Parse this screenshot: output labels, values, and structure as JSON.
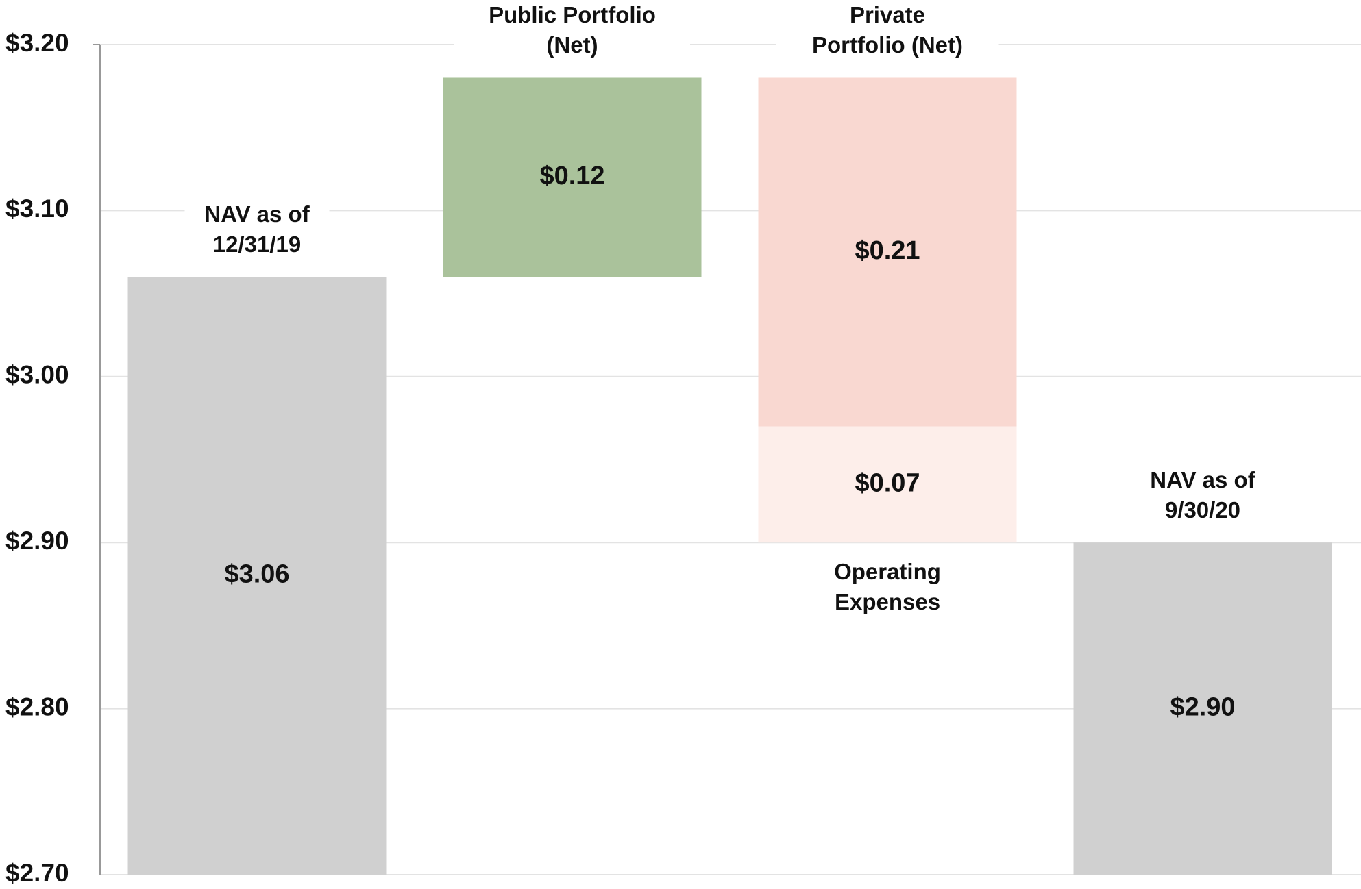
{
  "chart_data": {
    "type": "waterfall",
    "categories": [
      [
        "NAV as of",
        "12/31/19"
      ],
      [
        "Public Portfolio",
        "(Net)"
      ],
      [
        "Private",
        "Portfolio (Net)"
      ],
      [
        "Operating",
        "Expenses"
      ],
      [
        "NAV as of",
        "9/30/20"
      ]
    ],
    "measure": [
      "absolute",
      "relative",
      "relative",
      "relative",
      "total"
    ],
    "values": [
      3.06,
      0.12,
      -0.21,
      -0.07,
      2.9
    ],
    "value_labels": [
      "$3.06",
      "$0.12",
      "$0.21",
      "$0.07",
      "$2.90"
    ],
    "colors": [
      "#d0d0d0",
      "#aac29b",
      "#f9d8d1",
      "#fdeeea",
      "#d0d0d0"
    ],
    "ylim": [
      2.7,
      3.2
    ],
    "yticks": [
      {
        "value": 2.7,
        "label": "$2.70"
      },
      {
        "value": 2.8,
        "label": "$2.80"
      },
      {
        "value": 2.9,
        "label": "$2.90"
      },
      {
        "value": 3.0,
        "label": "$3.00"
      },
      {
        "value": 3.1,
        "label": "$3.10"
      },
      {
        "value": 3.2,
        "label": "$3.20"
      }
    ],
    "grid": true
  }
}
